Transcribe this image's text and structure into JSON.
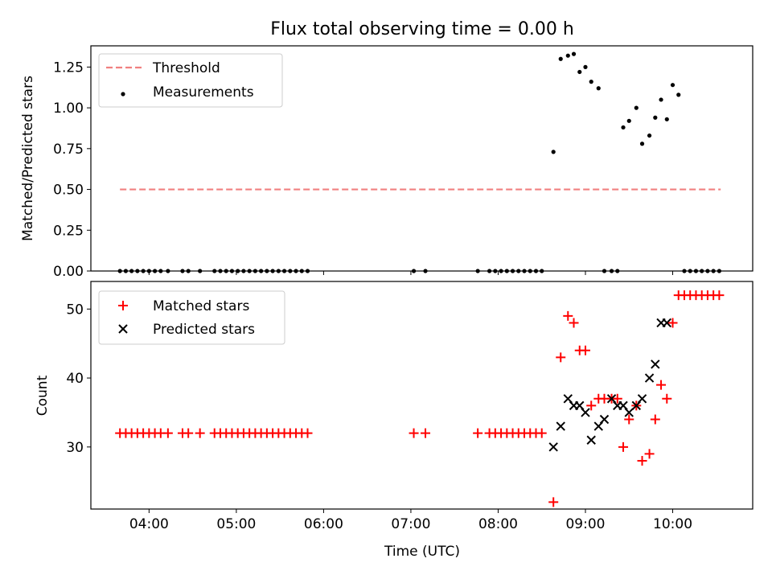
{
  "title": "Flux total observing time = 0.00 h",
  "colors": {
    "threshold": "#f08080",
    "measurement": "#000000",
    "matched": "#ff0000",
    "predicted": "#000000",
    "axes": "#000000"
  },
  "chart_data": [
    {
      "type": "scatter",
      "title": "Flux total observing time = 0.00 h",
      "xlabel": "",
      "ylabel": "Matched/Predicted stars",
      "xlim": [
        "03:20",
        "10:55"
      ],
      "ylim": [
        0,
        1.38
      ],
      "x_ticks": [
        "04:00",
        "05:00",
        "06:00",
        "07:00",
        "08:00",
        "09:00",
        "10:00"
      ],
      "y_ticks": [
        0.0,
        0.25,
        0.5,
        0.75,
        1.0,
        1.25
      ],
      "y_tick_labels": [
        "0.00",
        "0.25",
        "0.50",
        "0.75",
        "1.00",
        "1.25"
      ],
      "legend": {
        "position": "top-left",
        "entries": [
          "Threshold",
          "Measurements"
        ]
      },
      "grid": false,
      "series": [
        {
          "name": "Threshold",
          "kind": "line",
          "style": "dashed",
          "x": [
            "03:40",
            "10:33"
          ],
          "y": [
            0.5,
            0.5
          ]
        },
        {
          "name": "Measurements",
          "kind": "points",
          "x": [
            "03:40",
            "03:44",
            "03:48",
            "03:52",
            "03:56",
            "04:00",
            "04:04",
            "04:08",
            "04:13",
            "04:23",
            "04:27",
            "04:35",
            "04:45",
            "04:49",
            "04:53",
            "04:57",
            "05:01",
            "05:05",
            "05:09",
            "05:13",
            "05:17",
            "05:21",
            "05:25",
            "05:29",
            "05:33",
            "05:37",
            "05:41",
            "05:45",
            "05:49",
            "07:02",
            "07:10",
            "07:46",
            "07:54",
            "07:58",
            "08:02",
            "08:06",
            "08:10",
            "08:14",
            "08:18",
            "08:22",
            "08:26",
            "08:30",
            "08:38",
            "08:43",
            "08:48",
            "08:52",
            "08:56",
            "09:00",
            "09:04",
            "09:09",
            "09:13",
            "09:18",
            "09:22",
            "09:26",
            "09:30",
            "09:35",
            "09:39",
            "09:44",
            "09:48",
            "09:52",
            "09:56",
            "10:00",
            "10:04",
            "10:08",
            "10:12",
            "10:16",
            "10:20",
            "10:24",
            "10:28",
            "10:32"
          ],
          "y": [
            0,
            0,
            0,
            0,
            0,
            0,
            0,
            0,
            0,
            0,
            0,
            0,
            0,
            0,
            0,
            0,
            0,
            0,
            0,
            0,
            0,
            0,
            0,
            0,
            0,
            0,
            0,
            0,
            0,
            0,
            0,
            0,
            0,
            0,
            0,
            0,
            0,
            0,
            0,
            0,
            0,
            0,
            0.73,
            1.3,
            1.32,
            1.33,
            1.22,
            1.25,
            1.16,
            1.12,
            0,
            0,
            0,
            0.88,
            0.92,
            1.0,
            0.78,
            0.83,
            0.94,
            1.05,
            0.93,
            1.14,
            1.08,
            0,
            0,
            0,
            0,
            0,
            0,
            0
          ]
        }
      ]
    },
    {
      "type": "scatter",
      "title": "",
      "xlabel": "Time (UTC)",
      "ylabel": "Count",
      "xlim": [
        "03:20",
        "10:55"
      ],
      "ylim": [
        21,
        54
      ],
      "x_ticks": [
        "04:00",
        "05:00",
        "06:00",
        "07:00",
        "08:00",
        "09:00",
        "10:00"
      ],
      "y_ticks": [
        30,
        40,
        50
      ],
      "y_tick_labels": [
        "30",
        "40",
        "50"
      ],
      "legend": {
        "position": "top-left",
        "entries": [
          "Matched stars",
          "Predicted stars"
        ]
      },
      "grid": false,
      "series": [
        {
          "name": "Matched stars",
          "marker": "plus",
          "x": [
            "03:40",
            "03:44",
            "03:48",
            "03:52",
            "03:56",
            "04:00",
            "04:04",
            "04:08",
            "04:13",
            "04:23",
            "04:27",
            "04:35",
            "04:45",
            "04:49",
            "04:53",
            "04:57",
            "05:01",
            "05:05",
            "05:09",
            "05:13",
            "05:17",
            "05:21",
            "05:25",
            "05:29",
            "05:33",
            "05:37",
            "05:41",
            "05:45",
            "05:49",
            "07:02",
            "07:10",
            "07:46",
            "07:54",
            "07:58",
            "08:02",
            "08:06",
            "08:10",
            "08:14",
            "08:18",
            "08:22",
            "08:26",
            "08:30",
            "08:38",
            "08:43",
            "08:48",
            "08:52",
            "08:56",
            "09:00",
            "09:04",
            "09:09",
            "09:13",
            "09:18",
            "09:22",
            "09:26",
            "09:30",
            "09:35",
            "09:39",
            "09:44",
            "09:48",
            "09:52",
            "09:56",
            "10:00",
            "10:04",
            "10:08",
            "10:12",
            "10:16",
            "10:20",
            "10:24",
            "10:28",
            "10:32"
          ],
          "y": [
            32,
            32,
            32,
            32,
            32,
            32,
            32,
            32,
            32,
            32,
            32,
            32,
            32,
            32,
            32,
            32,
            32,
            32,
            32,
            32,
            32,
            32,
            32,
            32,
            32,
            32,
            32,
            32,
            32,
            32,
            32,
            32,
            32,
            32,
            32,
            32,
            32,
            32,
            32,
            32,
            32,
            32,
            22,
            43,
            49,
            48,
            44,
            44,
            36,
            37,
            37,
            37,
            37,
            30,
            34,
            36,
            28,
            29,
            34,
            39,
            37,
            48,
            52,
            52,
            52,
            52,
            52,
            52,
            52,
            52
          ]
        },
        {
          "name": "Predicted stars",
          "marker": "x",
          "x": [
            "08:38",
            "08:43",
            "08:48",
            "08:52",
            "08:56",
            "09:00",
            "09:04",
            "09:09",
            "09:13",
            "09:18",
            "09:22",
            "09:26",
            "09:30",
            "09:35",
            "09:39",
            "09:44",
            "09:48",
            "09:52",
            "09:56"
          ],
          "y": [
            30,
            33,
            37,
            36,
            36,
            35,
            31,
            33,
            34,
            37,
            36,
            36,
            35,
            36,
            37,
            40,
            42,
            48,
            48
          ]
        }
      ]
    }
  ]
}
